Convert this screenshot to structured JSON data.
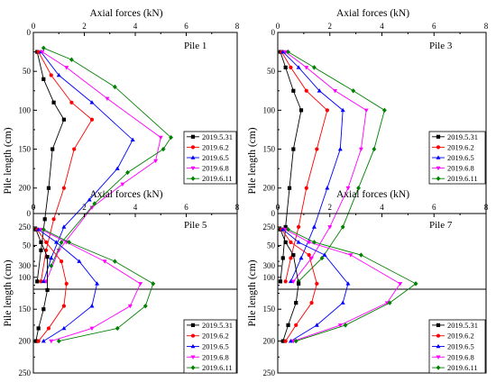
{
  "chart_data": [
    {
      "type": "line",
      "title": "Pile 1",
      "xlabel": "Axial forces (kN)",
      "ylabel": "Pile length (cm)",
      "xlim": [
        0,
        8
      ],
      "ylim": [
        330,
        0
      ],
      "xticks": [
        "0",
        "2",
        "4",
        "6",
        "8"
      ],
      "yticks": [
        "0",
        "50",
        "100",
        "150",
        "200",
        "250",
        "300"
      ],
      "ytick_values": [
        0,
        50,
        100,
        150,
        200,
        250,
        300
      ],
      "legend_position": "bottom-right",
      "series": [
        {
          "name": "2019.5.31",
          "color": "#000000",
          "marker": "square",
          "x": [
            0.15,
            0.4,
            0.8,
            1.2,
            0.75,
            0.6,
            0.45,
            0.3,
            0.15
          ],
          "y": [
            25,
            60,
            90,
            112,
            150,
            200,
            240,
            280,
            320
          ]
        },
        {
          "name": "2019.6.2",
          "color": "#ff0000",
          "marker": "circle",
          "x": [
            0.2,
            0.7,
            1.5,
            2.3,
            1.6,
            1.2,
            0.8,
            0.5,
            0.3
          ],
          "y": [
            25,
            55,
            90,
            112,
            150,
            200,
            240,
            280,
            320
          ]
        },
        {
          "name": "2019.6.5",
          "color": "#0000ff",
          "marker": "triangle-up",
          "x": [
            0.3,
            1.0,
            2.3,
            3.9,
            3.3,
            2.2,
            1.2,
            0.7,
            0.4
          ],
          "y": [
            25,
            55,
            90,
            138,
            175,
            215,
            250,
            290,
            320
          ]
        },
        {
          "name": "2019.6.8",
          "color": "#ff00ff",
          "marker": "triangle-down",
          "x": [
            0.35,
            1.3,
            2.9,
            5.0,
            4.8,
            3.5,
            2.3,
            1.0,
            0.5
          ],
          "y": [
            25,
            45,
            85,
            135,
            165,
            195,
            225,
            280,
            320
          ]
        },
        {
          "name": "2019.6.11",
          "color": "#008000",
          "marker": "diamond",
          "x": [
            0.4,
            1.5,
            3.2,
            5.4,
            5.1,
            3.7,
            2.4,
            1.1,
            0.7
          ],
          "y": [
            20,
            35,
            70,
            135,
            150,
            180,
            220,
            270,
            300
          ]
        }
      ]
    },
    {
      "type": "line",
      "title": "Pile 3",
      "xlabel": "Axial forces (kN)",
      "ylabel": "Pile length (cm)",
      "xlim": [
        0,
        8
      ],
      "ylim": [
        330,
        0
      ],
      "xticks": [
        "0",
        "2",
        "4",
        "6",
        "8"
      ],
      "yticks": [
        "0",
        "50",
        "100",
        "150",
        "200",
        "250",
        "300"
      ],
      "ytick_values": [
        0,
        50,
        100,
        150,
        200,
        250,
        300
      ],
      "legend_position": "bottom-right",
      "series": [
        {
          "name": "2019.5.31",
          "color": "#000000",
          "marker": "square",
          "x": [
            0.1,
            0.3,
            0.6,
            0.9,
            0.6,
            0.45,
            0.3,
            0.2,
            0.1
          ],
          "y": [
            25,
            45,
            75,
            100,
            150,
            200,
            250,
            290,
            320
          ]
        },
        {
          "name": "2019.6.2",
          "color": "#ff0000",
          "marker": "circle",
          "x": [
            0.15,
            0.5,
            1.1,
            1.9,
            1.5,
            1.1,
            0.8,
            0.5,
            0.3
          ],
          "y": [
            25,
            45,
            75,
            100,
            150,
            200,
            250,
            290,
            320
          ]
        },
        {
          "name": "2019.6.5",
          "color": "#0000ff",
          "marker": "triangle-up",
          "x": [
            0.2,
            0.8,
            1.6,
            2.5,
            2.4,
            1.9,
            1.4,
            0.9,
            0.5
          ],
          "y": [
            25,
            45,
            75,
            100,
            150,
            200,
            250,
            290,
            320
          ]
        },
        {
          "name": "2019.6.8",
          "color": "#ff00ff",
          "marker": "triangle-down",
          "x": [
            0.3,
            1.1,
            2.2,
            3.4,
            3.2,
            2.7,
            2.0,
            1.3,
            0.6
          ],
          "y": [
            25,
            45,
            75,
            100,
            150,
            200,
            250,
            290,
            320
          ]
        },
        {
          "name": "2019.6.11",
          "color": "#008000",
          "marker": "diamond",
          "x": [
            0.4,
            1.4,
            2.9,
            4.1,
            3.7,
            3.1,
            2.5,
            1.7,
            0.8
          ],
          "y": [
            25,
            45,
            75,
            100,
            150,
            200,
            250,
            290,
            320
          ]
        }
      ]
    },
    {
      "type": "line",
      "title": "Pile 5",
      "xlabel": "Axial forces (kN)",
      "ylabel": "Pile length (cm)",
      "xlim": [
        0,
        8
      ],
      "ylim": [
        250,
        0
      ],
      "xticks": [
        "0",
        "2",
        "4",
        "6",
        "8"
      ],
      "yticks": [
        "0",
        "50",
        "100",
        "150",
        "200",
        "250"
      ],
      "ytick_values": [
        0,
        50,
        100,
        150,
        200,
        250
      ],
      "legend_position": "bottom-right",
      "series": [
        {
          "name": "2019.5.31",
          "color": "#000000",
          "marker": "square",
          "x": [
            0.1,
            0.3,
            0.55,
            0.55,
            0.4,
            0.2,
            0.1
          ],
          "y": [
            25,
            45,
            68,
            120,
            150,
            180,
            200
          ]
        },
        {
          "name": "2019.6.2",
          "color": "#ff0000",
          "marker": "circle",
          "x": [
            0.15,
            0.5,
            1.1,
            1.3,
            1.2,
            0.6,
            0.2
          ],
          "y": [
            25,
            45,
            75,
            110,
            145,
            180,
            200
          ]
        },
        {
          "name": "2019.6.5",
          "color": "#0000ff",
          "marker": "triangle-up",
          "x": [
            0.2,
            0.9,
            1.8,
            2.5,
            2.3,
            1.2,
            0.4
          ],
          "y": [
            25,
            45,
            75,
            110,
            145,
            180,
            200
          ]
        },
        {
          "name": "2019.6.8",
          "color": "#ff00ff",
          "marker": "triangle-down",
          "x": [
            0.3,
            1.3,
            2.8,
            4.2,
            3.8,
            2.3,
            0.7
          ],
          "y": [
            25,
            45,
            75,
            110,
            145,
            180,
            200
          ]
        },
        {
          "name": "2019.6.11",
          "color": "#008000",
          "marker": "diamond",
          "x": [
            0.4,
            1.4,
            3.2,
            4.7,
            4.4,
            3.3,
            1.0
          ],
          "y": [
            25,
            45,
            75,
            110,
            145,
            180,
            200
          ]
        }
      ]
    },
    {
      "type": "line",
      "title": "Pile 7",
      "xlabel": "Axial forces (kN)",
      "ylabel": "Pile length (cm)",
      "xlim": [
        0,
        8
      ],
      "ylim": [
        250,
        0
      ],
      "xticks": [
        "0",
        "2",
        "4",
        "6",
        "8"
      ],
      "yticks": [
        "0",
        "50",
        "100",
        "150",
        "200",
        "250"
      ],
      "ytick_values": [
        0,
        50,
        100,
        150,
        200,
        250
      ],
      "legend_position": "bottom-right",
      "series": [
        {
          "name": "2019.5.31",
          "color": "#000000",
          "marker": "square",
          "x": [
            0.1,
            0.3,
            0.6,
            0.8,
            0.7,
            0.4,
            0.2
          ],
          "y": [
            25,
            45,
            65,
            110,
            140,
            175,
            200
          ]
        },
        {
          "name": "2019.6.2",
          "color": "#ff0000",
          "marker": "circle",
          "x": [
            0.15,
            0.5,
            1.2,
            1.5,
            1.3,
            0.7,
            0.3
          ],
          "y": [
            25,
            45,
            65,
            110,
            140,
            175,
            200
          ]
        },
        {
          "name": "2019.6.5",
          "color": "#0000ff",
          "marker": "triangle-up",
          "x": [
            0.2,
            0.8,
            1.8,
            2.7,
            2.5,
            1.5,
            0.5
          ],
          "y": [
            25,
            45,
            65,
            110,
            140,
            175,
            200
          ]
        },
        {
          "name": "2019.6.8",
          "color": "#ff00ff",
          "marker": "triangle-down",
          "x": [
            0.3,
            1.2,
            2.8,
            4.7,
            4.2,
            2.4,
            0.6
          ],
          "y": [
            25,
            45,
            65,
            110,
            140,
            175,
            200
          ]
        },
        {
          "name": "2019.6.11",
          "color": "#008000",
          "marker": "diamond",
          "x": [
            0.4,
            1.4,
            3.2,
            5.3,
            4.3,
            2.6,
            0.7
          ],
          "y": [
            25,
            45,
            65,
            110,
            140,
            175,
            200
          ]
        }
      ]
    }
  ]
}
